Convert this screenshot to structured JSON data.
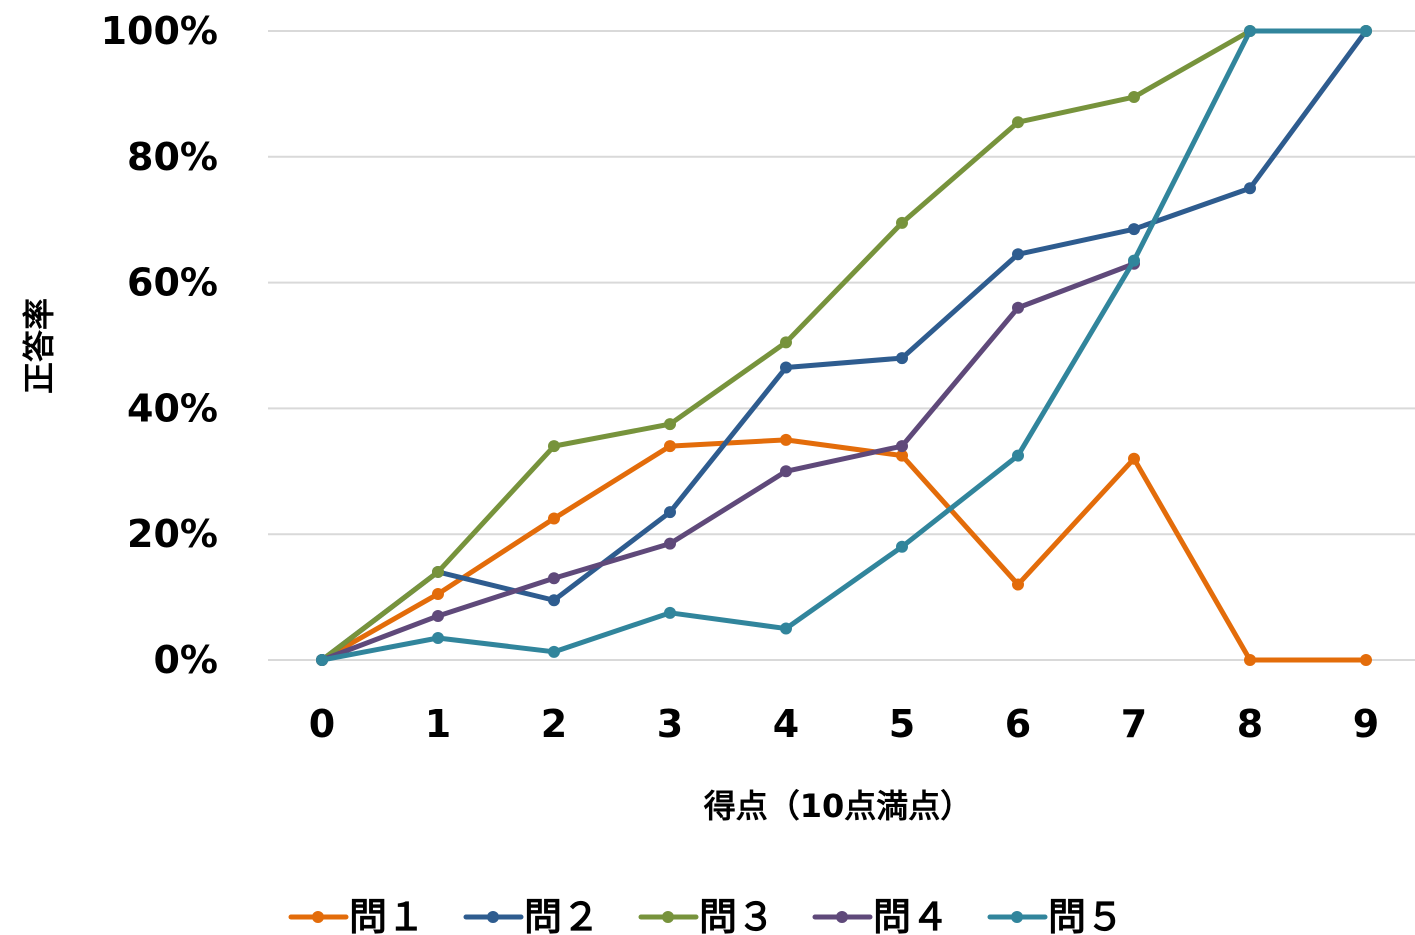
{
  "chart_data": {
    "type": "line",
    "xlabel": "得点（10点満点）",
    "ylabel": "正答率",
    "x": [
      0,
      1,
      2,
      3,
      4,
      5,
      6,
      7,
      8,
      9
    ],
    "x_tick_labels": [
      "0",
      "1",
      "2",
      "3",
      "4",
      "5",
      "6",
      "7",
      "8",
      "9"
    ],
    "ylim": [
      0,
      100
    ],
    "y_ticks": [
      0,
      20,
      40,
      60,
      80,
      100
    ],
    "y_tick_labels": [
      "0%",
      "20%",
      "40%",
      "60%",
      "80%",
      "100%"
    ],
    "grid": true,
    "legend_position": "bottom",
    "series": [
      {
        "name": "問１",
        "color": "#E36C0A",
        "values": [
          0,
          10.5,
          22.5,
          34,
          35,
          32.5,
          12,
          32,
          0,
          0
        ]
      },
      {
        "name": "問２",
        "color": "#2E5C8F",
        "values": [
          0,
          14,
          9.5,
          23.5,
          46.5,
          48,
          64.5,
          68.5,
          75,
          100
        ]
      },
      {
        "name": "問３",
        "color": "#77933C",
        "values": [
          0,
          14,
          34,
          37.5,
          50.5,
          69.5,
          85.5,
          89.5,
          100,
          100
        ]
      },
      {
        "name": "問４",
        "color": "#5F497A",
        "values": [
          0,
          7,
          13,
          18.5,
          30,
          34,
          56,
          63,
          null,
          null
        ]
      },
      {
        "name": "問５",
        "color": "#31859C",
        "values": [
          0,
          3.5,
          1.3,
          7.5,
          5,
          18,
          32.5,
          63.5,
          100,
          100
        ]
      }
    ]
  }
}
